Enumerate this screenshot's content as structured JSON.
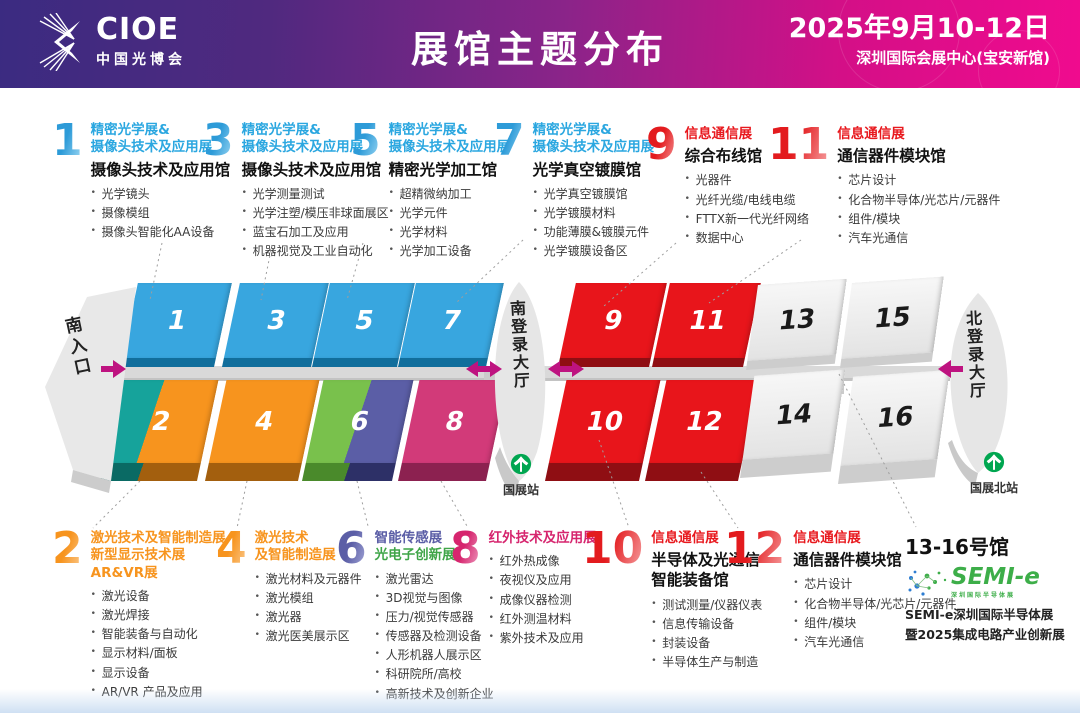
{
  "palette": {
    "header_purple": "#3B2B81",
    "header_magenta": "#F00B8E",
    "blue": "#2BA7E0",
    "red": "#E8191E",
    "orange": "#F7941E",
    "purple": "#5B5EA6",
    "green": "#3FA548",
    "pink": "#D6256E",
    "hall_blue": "#38A6DF",
    "hall_red": "#E8151B",
    "hall_teal": "#16A39B",
    "hall_orange": "#F7941E",
    "hall_green": "#79C14C",
    "hall_purple": "#5B5EA6",
    "hall_pink": "#D23A79",
    "hall_gray": "#EAEAEA",
    "metro_green": "#00A650",
    "arrow_magenta": "#BE1380",
    "semi_green": "#3DAE49"
  },
  "header": {
    "brand": "CIOE",
    "brand_cn": "中国光博会",
    "title": "展馆主题分布",
    "date": "2025年9月10-12日",
    "venue": "深圳国际会展中心(宝安新馆)"
  },
  "map": {
    "entrance": "南入口",
    "south_lobby": "南登录大厅",
    "north_lobby": "北登录大厅",
    "station_south": "国展站",
    "station_north": "国展北站",
    "halls": [
      "1",
      "2",
      "3",
      "4",
      "5",
      "6",
      "7",
      "8",
      "9",
      "10",
      "11",
      "12",
      "13",
      "14",
      "15",
      "16"
    ]
  },
  "sections_top": [
    {
      "num": "1",
      "title1": "精密光学展&",
      "title2": "摄像头技术及应用展",
      "hall": "摄像头技术及应用馆",
      "bullets": [
        "光学镜头",
        "摄像模组",
        "摄像头智能化AA设备"
      ]
    },
    {
      "num": "3",
      "title1": "精密光学展&",
      "title2": "摄像头技术及应用展",
      "hall": "摄像头技术及应用馆",
      "bullets": [
        "光学测量测试",
        "光学注塑/模压非球面展区",
        "蓝宝石加工及应用",
        "机器视觉及工业自动化"
      ]
    },
    {
      "num": "5",
      "title1": "精密光学展&",
      "title2": "摄像头技术及应用展",
      "hall": "精密光学加工馆",
      "bullets": [
        "超精微纳加工",
        "光学元件",
        "光学材料",
        "光学加工设备"
      ]
    },
    {
      "num": "7",
      "title1": "精密光学展&",
      "title2": "摄像头技术及应用展",
      "hall": "光学真空镀膜馆",
      "bullets": [
        "光学真空镀膜馆",
        "光学镀膜材料",
        "功能薄膜&镀膜元件",
        "光学镀膜设备区"
      ]
    },
    {
      "num": "9",
      "title1": "信息通信展",
      "hall": "综合布线馆",
      "bullets": [
        "光器件",
        "光纤光缆/电线电缆",
        "FTTX新一代光纤网络",
        "数据中心"
      ]
    },
    {
      "num": "11",
      "title1": "信息通信展",
      "hall": "通信器件模块馆",
      "bullets": [
        "芯片设计",
        "化合物半导体/光芯片/元器件",
        "组件/模块",
        "汽车光通信"
      ]
    }
  ],
  "sections_bottom": [
    {
      "num": "2",
      "title1": "激光技术及智能制造展",
      "title2": "新型显示技术展",
      "title3": "AR&VR展",
      "bullets": [
        "激光设备",
        "激光焊接",
        "智能装备与自动化",
        "显示材料/面板",
        "显示设备",
        "AR/VR 产品及应用"
      ]
    },
    {
      "num": "4",
      "title1": "激光技术",
      "title2": "及智能制造展",
      "bullets": [
        "激光材料及元器件",
        "激光模组",
        "激光器",
        "激光医美展示区"
      ]
    },
    {
      "num": "6",
      "title1": "智能传感展",
      "title2": "光电子创新展",
      "bullets": [
        "激光雷达",
        "3D视觉与图像",
        "压力/视觉传感器",
        "传感器及检测设备",
        "人形机器人展示区",
        "科研院所/高校",
        "高新技术及创新企业"
      ]
    },
    {
      "num": "8",
      "title1": "红外技术及应用展",
      "bullets": [
        "红外热成像",
        "夜视仪及应用",
        "成像仪器检测",
        "红外测温材料",
        "紫外技术及应用"
      ]
    },
    {
      "num": "10",
      "title1": "信息通信展",
      "hall1": "半导体及光通信",
      "hall2": "智能装备馆",
      "bullets": [
        "测试测量/仪器仪表",
        "信息传输设备",
        "封装设备",
        "半导体生产与制造"
      ]
    },
    {
      "num": "12",
      "title1": "信息通信展",
      "hall1": "通信器件模块馆",
      "bullets": [
        "芯片设计",
        "化合物半导体/光芯片/元器件",
        "组件/模块",
        "汽车光通信"
      ]
    }
  ],
  "semi": {
    "range": "13-16号馆",
    "brand": "SEMI-e",
    "brand_sub": "深圳国际半导体展",
    "line1": "SEMI-e深圳国际半导体展",
    "line2": "暨2025集成电路产业创新展"
  }
}
